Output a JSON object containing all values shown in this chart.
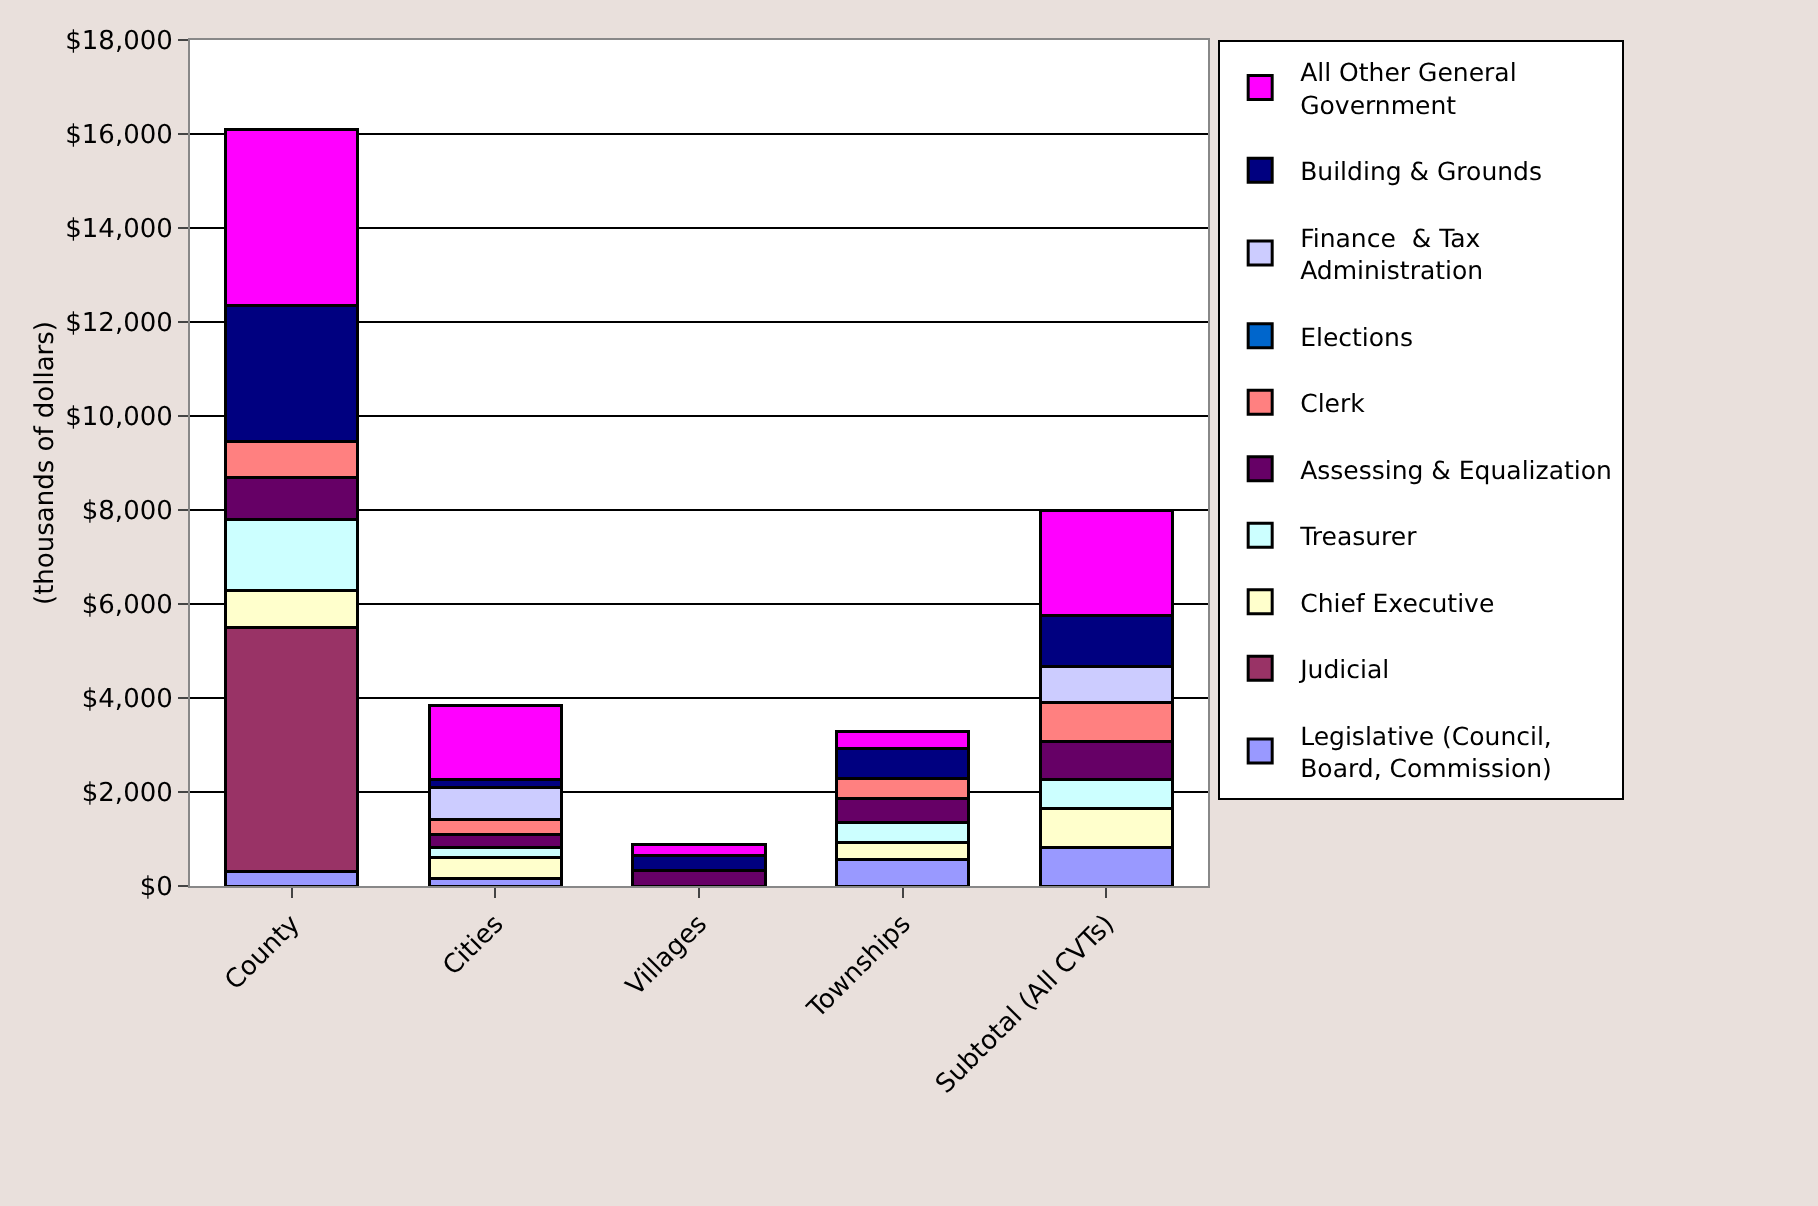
{
  "chart_data": {
    "type": "bar",
    "stacked": true,
    "ylabel": "(thousands of dollars)",
    "categories": [
      "County",
      "Cities",
      "Villages",
      "Townships",
      "Subtotal (All CVTs)"
    ],
    "series": [
      {
        "name": "Legislative (Council, Board, Commission)",
        "color": "#9999ff",
        "values": [
          310,
          170,
          null,
          570,
          830
        ]
      },
      {
        "name": "Judicial",
        "color": "#993366",
        "values": [
          5190,
          0,
          0,
          0,
          0
        ]
      },
      {
        "name": "Chief Executive",
        "color": "#ffffcc",
        "values": [
          780,
          430,
          null,
          360,
          810
        ]
      },
      {
        "name": "Treasurer",
        "color": "#ccffff",
        "values": [
          1520,
          210,
          null,
          430,
          620
        ]
      },
      {
        "name": "Assessing & Equalization",
        "color": "#660066",
        "values": [
          900,
          280,
          330,
          500,
          810
        ]
      },
      {
        "name": "Clerk",
        "color": "#ff8080",
        "values": [
          750,
          330,
          null,
          430,
          830
        ]
      },
      {
        "name": "Elections",
        "color": "#0066cc",
        "values": [
          0,
          0,
          0,
          0,
          0
        ]
      },
      {
        "name": "Finance  & Tax Administration",
        "color": "#ccccff",
        "values": [
          0,
          670,
          0,
          0,
          760
        ]
      },
      {
        "name": "Building & Grounds",
        "color": "#000080",
        "values": [
          2910,
          170,
          310,
          640,
          1100
        ]
      },
      {
        "name": "All Other General Government",
        "color": "#ff00ff",
        "values": [
          3740,
          1580,
          240,
          360,
          2240
        ]
      }
    ],
    "ylim": [
      0,
      18000
    ],
    "yticks": [
      {
        "value": 0,
        "label": "$0"
      },
      {
        "value": 2000,
        "label": "$2,000"
      },
      {
        "value": 4000,
        "label": "$4,000"
      },
      {
        "value": 6000,
        "label": "$6,000"
      },
      {
        "value": 8000,
        "label": "$8,000"
      },
      {
        "value": 10000,
        "label": "$10,000"
      },
      {
        "value": 12000,
        "label": "$12,000"
      },
      {
        "value": 14000,
        "label": "$14,000"
      },
      {
        "value": 16000,
        "label": "$16,000"
      },
      {
        "value": 18000,
        "label": "$18,000"
      }
    ],
    "grid": "y",
    "legend": "right"
  }
}
